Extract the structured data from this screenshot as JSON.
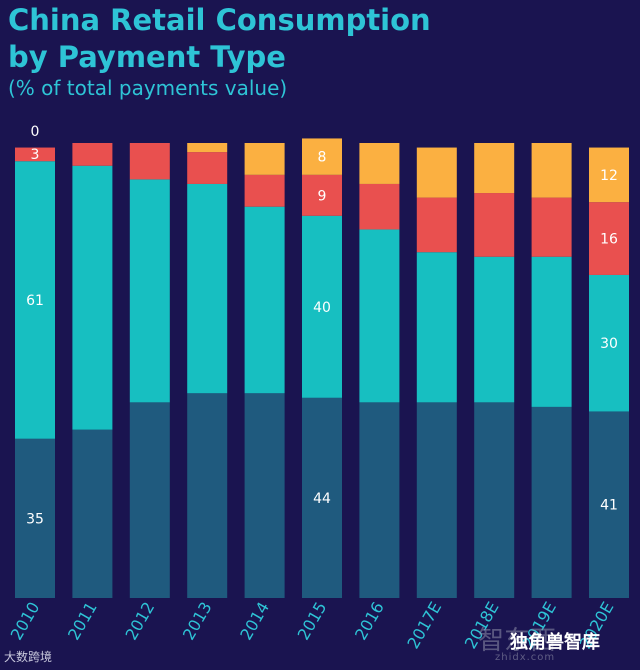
{
  "header": {
    "title_line1": "China Retail Consumption",
    "title_line2": "by Payment Type",
    "subtitle": "(% of total payments value)"
  },
  "watermarks": {
    "left": "大数跨境",
    "right": "独角兽智库",
    "logo": "智东西",
    "logo_sub": "zhidx.com"
  },
  "colors": {
    "background": "#1a1450",
    "bottom": "#1f5a7e",
    "second": "#17bfc1",
    "third": "#e9504f",
    "top": "#fbb041",
    "label": "#ffffff",
    "axis_label": "#2ec4d6"
  },
  "chart_data": {
    "type": "bar",
    "stacked": true,
    "title": "China Retail Consumption by Payment Type",
    "subtitle": "(% of total payments value)",
    "xlabel": "",
    "ylabel": "",
    "ylim": [
      0,
      100
    ],
    "categories": [
      "2010",
      "2011",
      "2012",
      "2013",
      "2014",
      "2015",
      "2016",
      "2017E",
      "2018E",
      "2019E",
      "2020E"
    ],
    "series": [
      {
        "name": "bottom segment",
        "color": "#1f5a7e",
        "values": [
          35,
          37,
          43,
          45,
          45,
          44,
          43,
          43,
          43,
          42,
          41
        ]
      },
      {
        "name": "second segment",
        "color": "#17bfc1",
        "values": [
          61,
          58,
          49,
          46,
          41,
          40,
          38,
          33,
          32,
          33,
          30
        ]
      },
      {
        "name": "third segment",
        "color": "#e9504f",
        "values": [
          3,
          5,
          8,
          7,
          7,
          9,
          10,
          12,
          14,
          13,
          16
        ]
      },
      {
        "name": "top segment",
        "color": "#fbb041",
        "values": [
          0,
          0,
          0,
          2,
          7,
          8,
          9,
          11,
          11,
          12,
          12
        ]
      }
    ],
    "data_labels": [
      {
        "category": "2010",
        "series": "bottom segment",
        "text": "35"
      },
      {
        "category": "2010",
        "series": "second segment",
        "text": "61"
      },
      {
        "category": "2010",
        "series": "third segment",
        "text": "3"
      },
      {
        "category": "2010",
        "series": "top segment",
        "text": "0"
      },
      {
        "category": "2015",
        "series": "bottom segment",
        "text": "44"
      },
      {
        "category": "2015",
        "series": "second segment",
        "text": "40"
      },
      {
        "category": "2015",
        "series": "third segment",
        "text": "9"
      },
      {
        "category": "2015",
        "series": "top segment",
        "text": "8"
      },
      {
        "category": "2020E",
        "series": "bottom segment",
        "text": "41"
      },
      {
        "category": "2020E",
        "series": "second segment",
        "text": "30"
      },
      {
        "category": "2020E",
        "series": "third segment",
        "text": "16"
      },
      {
        "category": "2020E",
        "series": "top segment",
        "text": "12"
      }
    ]
  }
}
